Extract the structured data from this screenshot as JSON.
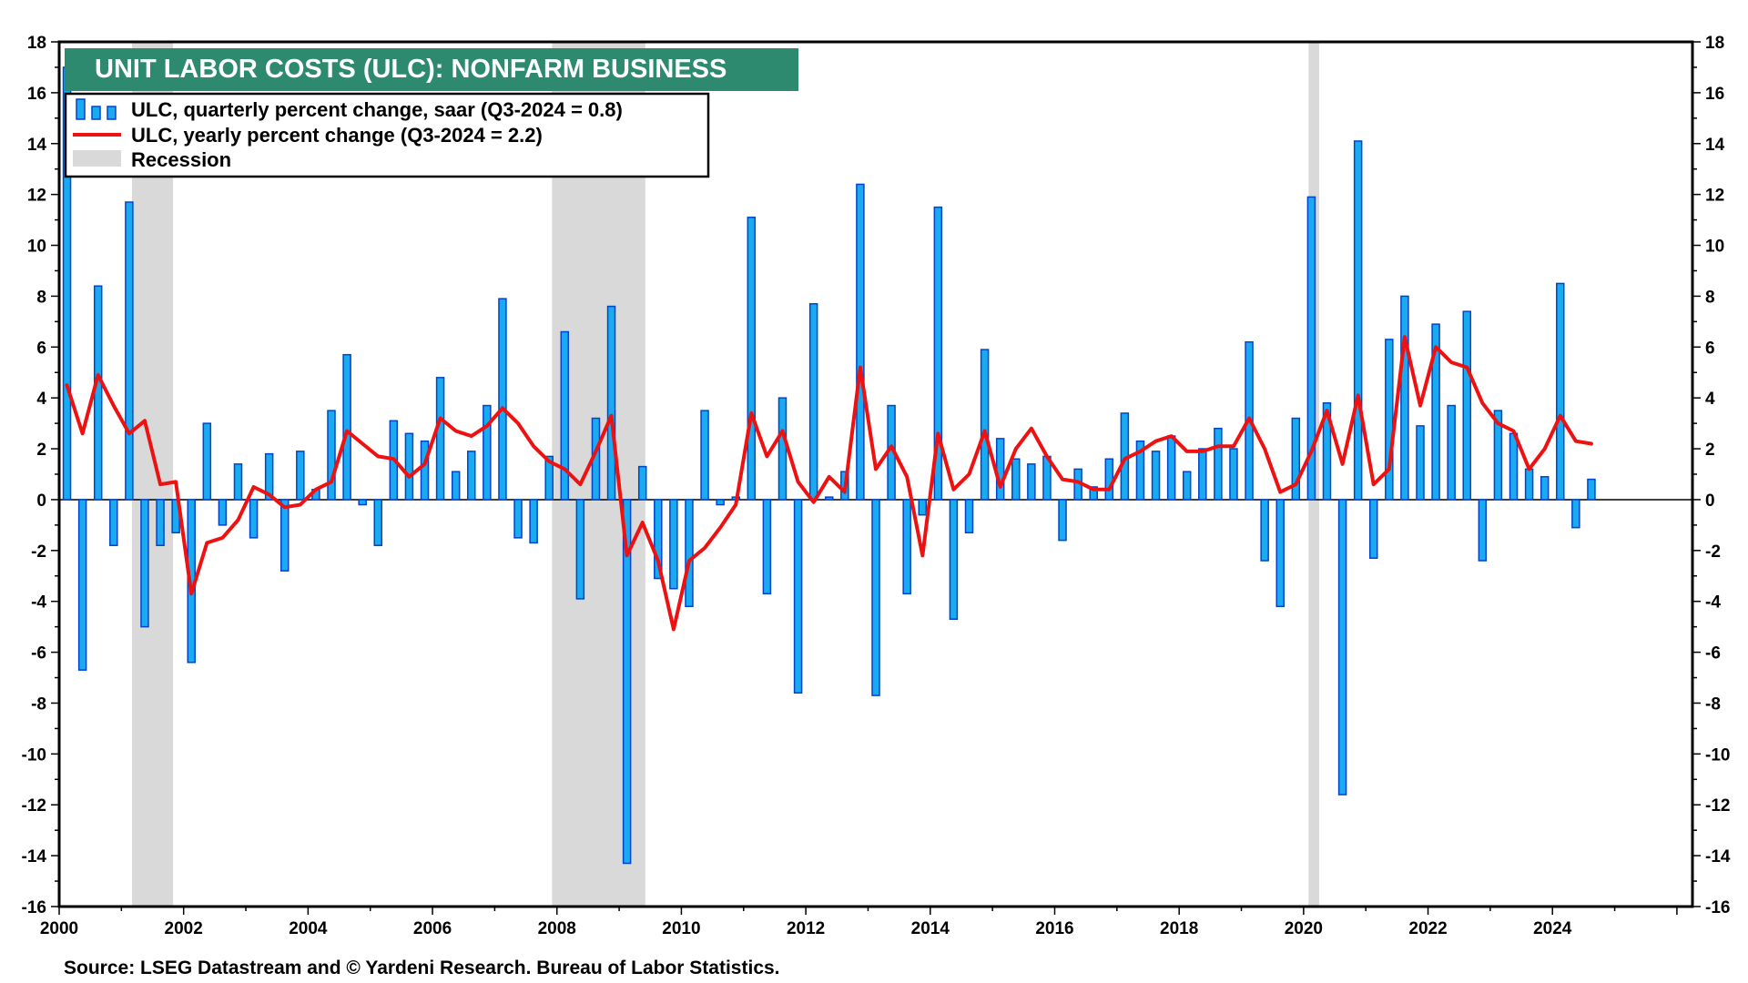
{
  "chart_data": {
    "type": "bar+line",
    "title": "UNIT LABOR COSTS (ULC): NONFARM BUSINESS",
    "source": "Source: LSEG Datastream and © Yardeni Research. Bureau of Labor Statistics.",
    "ylim": [
      -16,
      18
    ],
    "y_ticks": [
      18,
      16,
      14,
      12,
      10,
      8,
      6,
      4,
      2,
      0,
      -2,
      -4,
      -6,
      -8,
      -10,
      -12,
      -14,
      -16
    ],
    "y_tick_labels": [
      "18",
      "16",
      "14",
      "12",
      "10",
      "8",
      "6",
      "4",
      "2",
      "0",
      "-2",
      "-4",
      "-6",
      "-8",
      "-10",
      "-12",
      "-14",
      "-16"
    ],
    "x_range": [
      2000,
      2026.25
    ],
    "x_ticks": [
      2000,
      2002,
      2004,
      2006,
      2008,
      2010,
      2012,
      2014,
      2016,
      2018,
      2020,
      2022,
      2024
    ],
    "x_tick_labels": [
      "2000",
      "2002",
      "2004",
      "2006",
      "2008",
      "2010",
      "2012",
      "2014",
      "2016",
      "2018",
      "2020",
      "2022",
      "2024"
    ],
    "legend": {
      "bars_label": "ULC, quarterly percent change, saar (Q3-2024 = 0.8)",
      "line_label": "ULC, yearly percent change (Q3-2024 = 2.2)",
      "recession_label": "Recession"
    },
    "recessions": [
      {
        "start": 2001.17,
        "end": 2001.83
      },
      {
        "start": 2007.92,
        "end": 2009.42
      },
      {
        "start": 2020.08,
        "end": 2020.25
      }
    ],
    "x_start_year": 2000.0,
    "quarter_step": 0.25,
    "series": [
      {
        "name": "ULC, quarterly percent change, saar",
        "type": "bar",
        "values": [
          17.0,
          -6.7,
          8.4,
          -1.8,
          11.7,
          -5.0,
          -1.8,
          -1.3,
          -6.4,
          3.0,
          -1.0,
          1.4,
          -1.5,
          1.8,
          -2.8,
          1.9,
          0.4,
          3.5,
          5.7,
          -0.2,
          -1.8,
          3.1,
          2.6,
          2.3,
          4.8,
          1.1,
          1.9,
          3.7,
          7.9,
          -1.5,
          -1.7,
          1.7,
          6.6,
          -3.9,
          3.2,
          7.6,
          -14.3,
          1.3,
          -3.1,
          -3.5,
          -4.2,
          3.5,
          -0.2,
          0.1,
          11.1,
          -3.7,
          4.0,
          -7.6,
          7.7,
          0.1,
          1.1,
          12.4,
          -7.7,
          3.7,
          -3.7,
          -0.6,
          11.5,
          -4.7,
          -1.3,
          5.9,
          2.4,
          1.6,
          1.4,
          1.7,
          -1.6,
          1.2,
          0.5,
          1.6,
          3.4,
          2.3,
          1.9,
          2.5,
          1.1,
          2.0,
          2.8,
          2.0,
          6.2,
          -2.4,
          -4.2,
          3.2,
          11.9,
          3.8,
          -11.6,
          14.1,
          -2.3,
          6.3,
          8.0,
          2.9,
          6.9,
          3.7,
          7.4,
          -2.4,
          3.5,
          2.6,
          1.2,
          0.9,
          8.5,
          -1.1,
          0.8
        ]
      },
      {
        "name": "ULC, yearly percent change",
        "type": "line",
        "values": [
          4.5,
          2.6,
          4.9,
          3.7,
          2.6,
          3.1,
          0.6,
          0.7,
          -3.7,
          -1.7,
          -1.5,
          -0.8,
          0.5,
          0.2,
          -0.3,
          -0.2,
          0.4,
          0.7,
          2.7,
          2.2,
          1.7,
          1.6,
          0.9,
          1.4,
          3.2,
          2.7,
          2.5,
          2.9,
          3.6,
          3.0,
          2.1,
          1.5,
          1.2,
          0.6,
          1.9,
          3.3,
          -2.2,
          -0.9,
          -2.4,
          -5.1,
          -2.4,
          -1.9,
          -1.1,
          -0.2,
          3.4,
          1.7,
          2.7,
          0.7,
          -0.1,
          0.9,
          0.3,
          5.2,
          1.2,
          2.1,
          0.9,
          -2.2,
          2.6,
          0.4,
          1.0,
          2.7,
          0.5,
          2.0,
          2.8,
          1.7,
          0.8,
          0.7,
          0.4,
          0.4,
          1.6,
          1.9,
          2.3,
          2.5,
          1.9,
          1.9,
          2.1,
          2.1,
          3.2,
          2.0,
          0.3,
          0.6,
          1.9,
          3.5,
          1.4,
          4.1,
          0.6,
          1.2,
          6.4,
          3.7,
          6.0,
          5.4,
          5.2,
          3.8,
          3.0,
          2.7,
          1.2,
          2.0,
          3.3,
          2.3,
          2.2
        ]
      }
    ]
  },
  "colors": {
    "bar_fill": "#1aaaf0",
    "bar_stroke": "#0044cc",
    "line": "#ee1111",
    "recession": "#d9d9d9",
    "title_bg": "#2e8a6e",
    "title_text": "#ffffff",
    "frame": "#000000"
  }
}
